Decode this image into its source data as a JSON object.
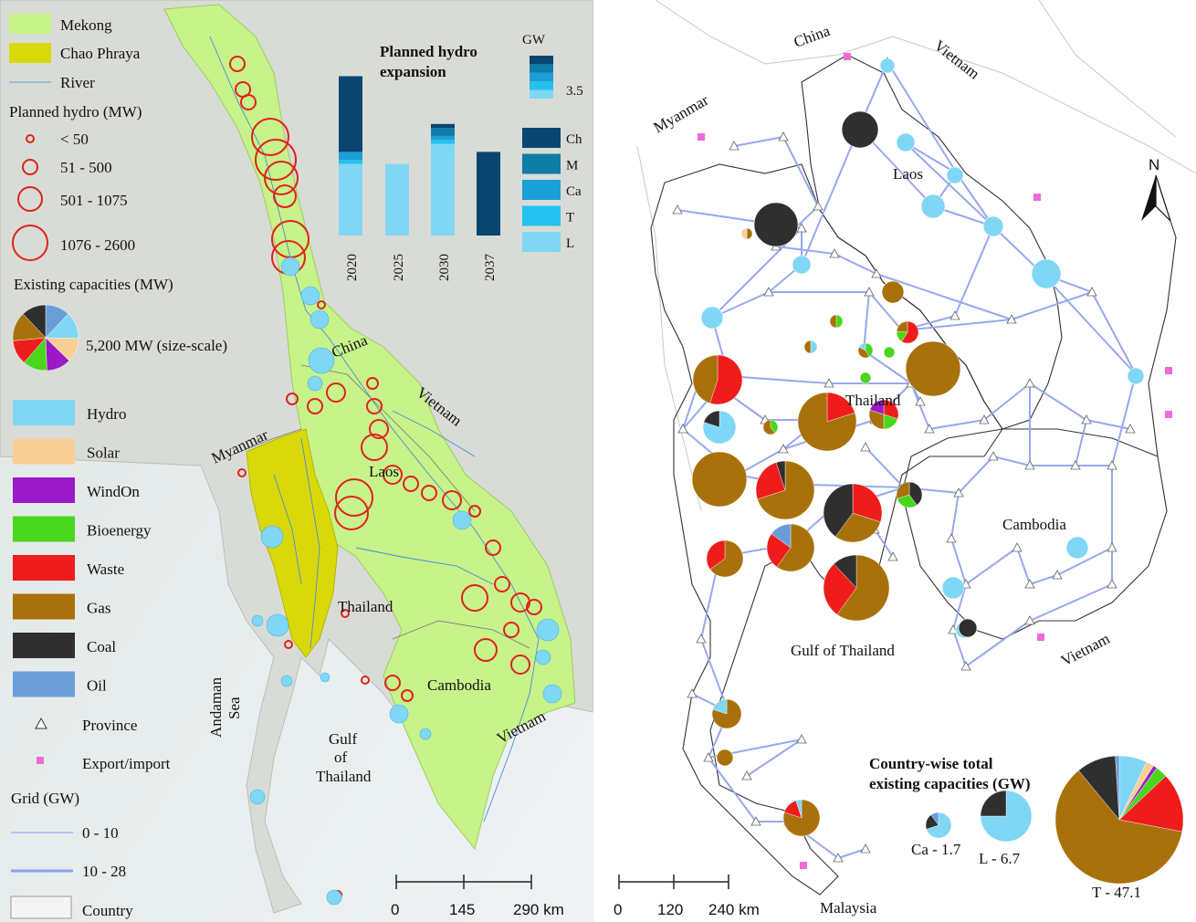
{
  "left_legend": {
    "mekong": "Mekong",
    "chao_phraya": "Chao Phraya",
    "river": "River",
    "planned_title": "Planned hydro (MW)",
    "planned_sizes": [
      "< 50",
      "51 - 500",
      "501 - 1075",
      "1076 - 2600"
    ],
    "existing_title": "Existing capacities (MW)",
    "existing_scale": "5,200 MW (size-scale)",
    "tech": [
      {
        "name": "Hydro",
        "color": "#7fd7f5"
      },
      {
        "name": "Solar",
        "color": "#f9cf95"
      },
      {
        "name": "WindOn",
        "color": "#9b19c8"
      },
      {
        "name": "Bioenergy",
        "color": "#49d61d"
      },
      {
        "name": "Waste",
        "color": "#ef1c1c"
      },
      {
        "name": "Gas",
        "color": "#a8710b"
      },
      {
        "name": "Coal",
        "color": "#2f2f2f"
      },
      {
        "name": "Oil",
        "color": "#6a9dd8"
      }
    ],
    "province": "Province",
    "export": "Export/import",
    "grid_title": "Grid (GW)",
    "grid": [
      "0 - 10",
      "10 - 28"
    ],
    "country": "Country"
  },
  "left_map_labels": {
    "china": "China",
    "vietnam1": "Vietnam",
    "vietnam2": "Vietnam",
    "myanmar": "Myanmar",
    "laos": "Laos",
    "thailand": "Thailand",
    "cambodia": "Cambodia",
    "andaman1": "Andaman",
    "andaman2": "Sea",
    "gulf1": "Gulf",
    "gulf2": "of",
    "gulf3": "Thailand"
  },
  "left_scale": {
    "ticks": [
      "0",
      "145",
      "290 km"
    ]
  },
  "chart_data": {
    "type": "bar",
    "title": "Planned hydro expansion",
    "unit_label": "GW",
    "unit_value": "3.5",
    "categories": [
      "2020",
      "2025",
      "2030",
      "2037"
    ],
    "series": [
      {
        "name": "L",
        "color": "#7fd7f5",
        "values": [
          1.8,
          1.8,
          2.3,
          0
        ]
      },
      {
        "name": "T",
        "color": "#24c1ee",
        "values": [
          0.1,
          0,
          0.1,
          0
        ]
      },
      {
        "name": "Ca",
        "color": "#1a9fd8",
        "values": [
          0.2,
          0,
          0.1,
          0
        ]
      },
      {
        "name": "M",
        "color": "#0e7da8",
        "values": [
          0,
          0,
          0.2,
          0
        ]
      },
      {
        "name": "Ch",
        "color": "#0a4670",
        "values": [
          1.9,
          0,
          0.1,
          2.1
        ]
      }
    ],
    "legend": [
      "Ch",
      "M",
      "Ca",
      "T",
      "L"
    ],
    "ylim": [
      0,
      4.4
    ]
  },
  "right_map_labels": {
    "china": "China",
    "vietnam_n": "Vietnam",
    "myanmar": "Myanmar",
    "laos": "Laos",
    "thailand": "Thailand",
    "cambodia": "Cambodia",
    "gulf": "Gulf of Thailand",
    "vietnam_s": "Vietnam",
    "malaysia": "Malaysia",
    "north": "N"
  },
  "right_scale": {
    "ticks": [
      "0",
      "120",
      "240 km"
    ]
  },
  "country_totals": {
    "title1": "Country-wise total",
    "title2": "existing capacities (GW)",
    "items": [
      {
        "label": "Ca - 1.7",
        "total": 1.7
      },
      {
        "label": "L - 6.7",
        "total": 6.7
      },
      {
        "label": "T - 47.1",
        "total": 47.1
      }
    ]
  }
}
